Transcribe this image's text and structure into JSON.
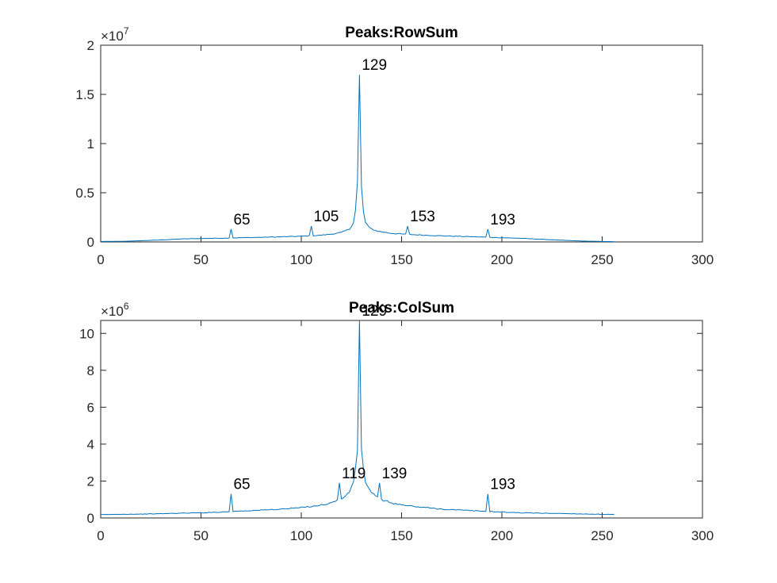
{
  "chart_data": [
    {
      "type": "line",
      "title": "Peaks:RowSum",
      "xlim": [
        0,
        300
      ],
      "ylim": [
        0,
        20000000
      ],
      "xticks": [
        0,
        50,
        100,
        150,
        200,
        250,
        300
      ],
      "yticks": [
        0,
        5000000,
        10000000,
        15000000,
        20000000
      ],
      "ytick_labels": [
        "0",
        "0.5",
        "1",
        "1.5",
        "2"
      ],
      "y_multiplier": {
        "base": "×10",
        "exponent": "7"
      },
      "x_range": [
        0,
        256
      ],
      "series_color": "#0072BD",
      "profile": [
        [
          0,
          50000
        ],
        [
          10,
          60000
        ],
        [
          20,
          120000
        ],
        [
          30,
          200000
        ],
        [
          40,
          300000
        ],
        [
          50,
          350000
        ],
        [
          60,
          380000
        ],
        [
          64,
          400000
        ],
        [
          70,
          430000
        ],
        [
          80,
          470000
        ],
        [
          90,
          520000
        ],
        [
          100,
          580000
        ],
        [
          104,
          620000
        ],
        [
          110,
          680000
        ],
        [
          115,
          800000
        ],
        [
          120,
          950000
        ],
        [
          124,
          1300000
        ],
        [
          126,
          2000000
        ],
        [
          127,
          3200000
        ],
        [
          128,
          6000000
        ],
        [
          130,
          5500000
        ],
        [
          131,
          3000000
        ],
        [
          132,
          2000000
        ],
        [
          134,
          1400000
        ],
        [
          138,
          1100000
        ],
        [
          144,
          900000
        ],
        [
          150,
          800000
        ],
        [
          160,
          700000
        ],
        [
          170,
          620000
        ],
        [
          180,
          560000
        ],
        [
          190,
          500000
        ],
        [
          200,
          430000
        ],
        [
          210,
          360000
        ],
        [
          220,
          270000
        ],
        [
          230,
          170000
        ],
        [
          240,
          90000
        ],
        [
          250,
          50000
        ],
        [
          256,
          30000
        ]
      ],
      "peaks": [
        {
          "label": "65",
          "x": 65,
          "y": 1300000
        },
        {
          "label": "105",
          "x": 105,
          "y": 1600000
        },
        {
          "label": "129",
          "x": 129,
          "y": 17000000
        },
        {
          "label": "153",
          "x": 153,
          "y": 1600000
        },
        {
          "label": "193",
          "x": 193,
          "y": 1300000
        }
      ]
    },
    {
      "type": "line",
      "title": "Peaks:ColSum",
      "xlim": [
        0,
        300
      ],
      "ylim": [
        0,
        10700000
      ],
      "xticks": [
        0,
        50,
        100,
        150,
        200,
        250,
        300
      ],
      "yticks": [
        0,
        2000000,
        4000000,
        6000000,
        8000000,
        10000000
      ],
      "ytick_labels": [
        "0",
        "2",
        "4",
        "6",
        "8",
        "10"
      ],
      "y_multiplier": {
        "base": "×10",
        "exponent": "6"
      },
      "x_range": [
        0,
        256
      ],
      "series_color": "#0072BD",
      "profile": [
        [
          0,
          180000
        ],
        [
          10,
          200000
        ],
        [
          20,
          210000
        ],
        [
          30,
          230000
        ],
        [
          40,
          260000
        ],
        [
          50,
          280000
        ],
        [
          60,
          320000
        ],
        [
          64,
          340000
        ],
        [
          70,
          380000
        ],
        [
          80,
          420000
        ],
        [
          90,
          480000
        ],
        [
          100,
          560000
        ],
        [
          110,
          700000
        ],
        [
          115,
          820000
        ],
        [
          118,
          950000
        ],
        [
          121,
          1100000
        ],
        [
          123,
          1300000
        ],
        [
          125,
          1600000
        ],
        [
          126,
          2000000
        ],
        [
          127,
          2600000
        ],
        [
          128,
          3800000
        ],
        [
          130,
          3600000
        ],
        [
          131,
          2600000
        ],
        [
          132,
          2000000
        ],
        [
          134,
          1500000
        ],
        [
          137,
          1150000
        ],
        [
          141,
          950000
        ],
        [
          145,
          820000
        ],
        [
          150,
          700000
        ],
        [
          160,
          580000
        ],
        [
          170,
          480000
        ],
        [
          180,
          420000
        ],
        [
          190,
          370000
        ],
        [
          200,
          320000
        ],
        [
          210,
          280000
        ],
        [
          220,
          260000
        ],
        [
          230,
          240000
        ],
        [
          240,
          220000
        ],
        [
          250,
          200000
        ],
        [
          256,
          190000
        ]
      ],
      "peaks": [
        {
          "label": "65",
          "x": 65,
          "y": 1300000
        },
        {
          "label": "119",
          "x": 119,
          "y": 1900000
        },
        {
          "label": "129",
          "x": 129,
          "y": 10700000
        },
        {
          "label": "139",
          "x": 139,
          "y": 1900000
        },
        {
          "label": "193",
          "x": 193,
          "y": 1300000
        }
      ]
    }
  ]
}
